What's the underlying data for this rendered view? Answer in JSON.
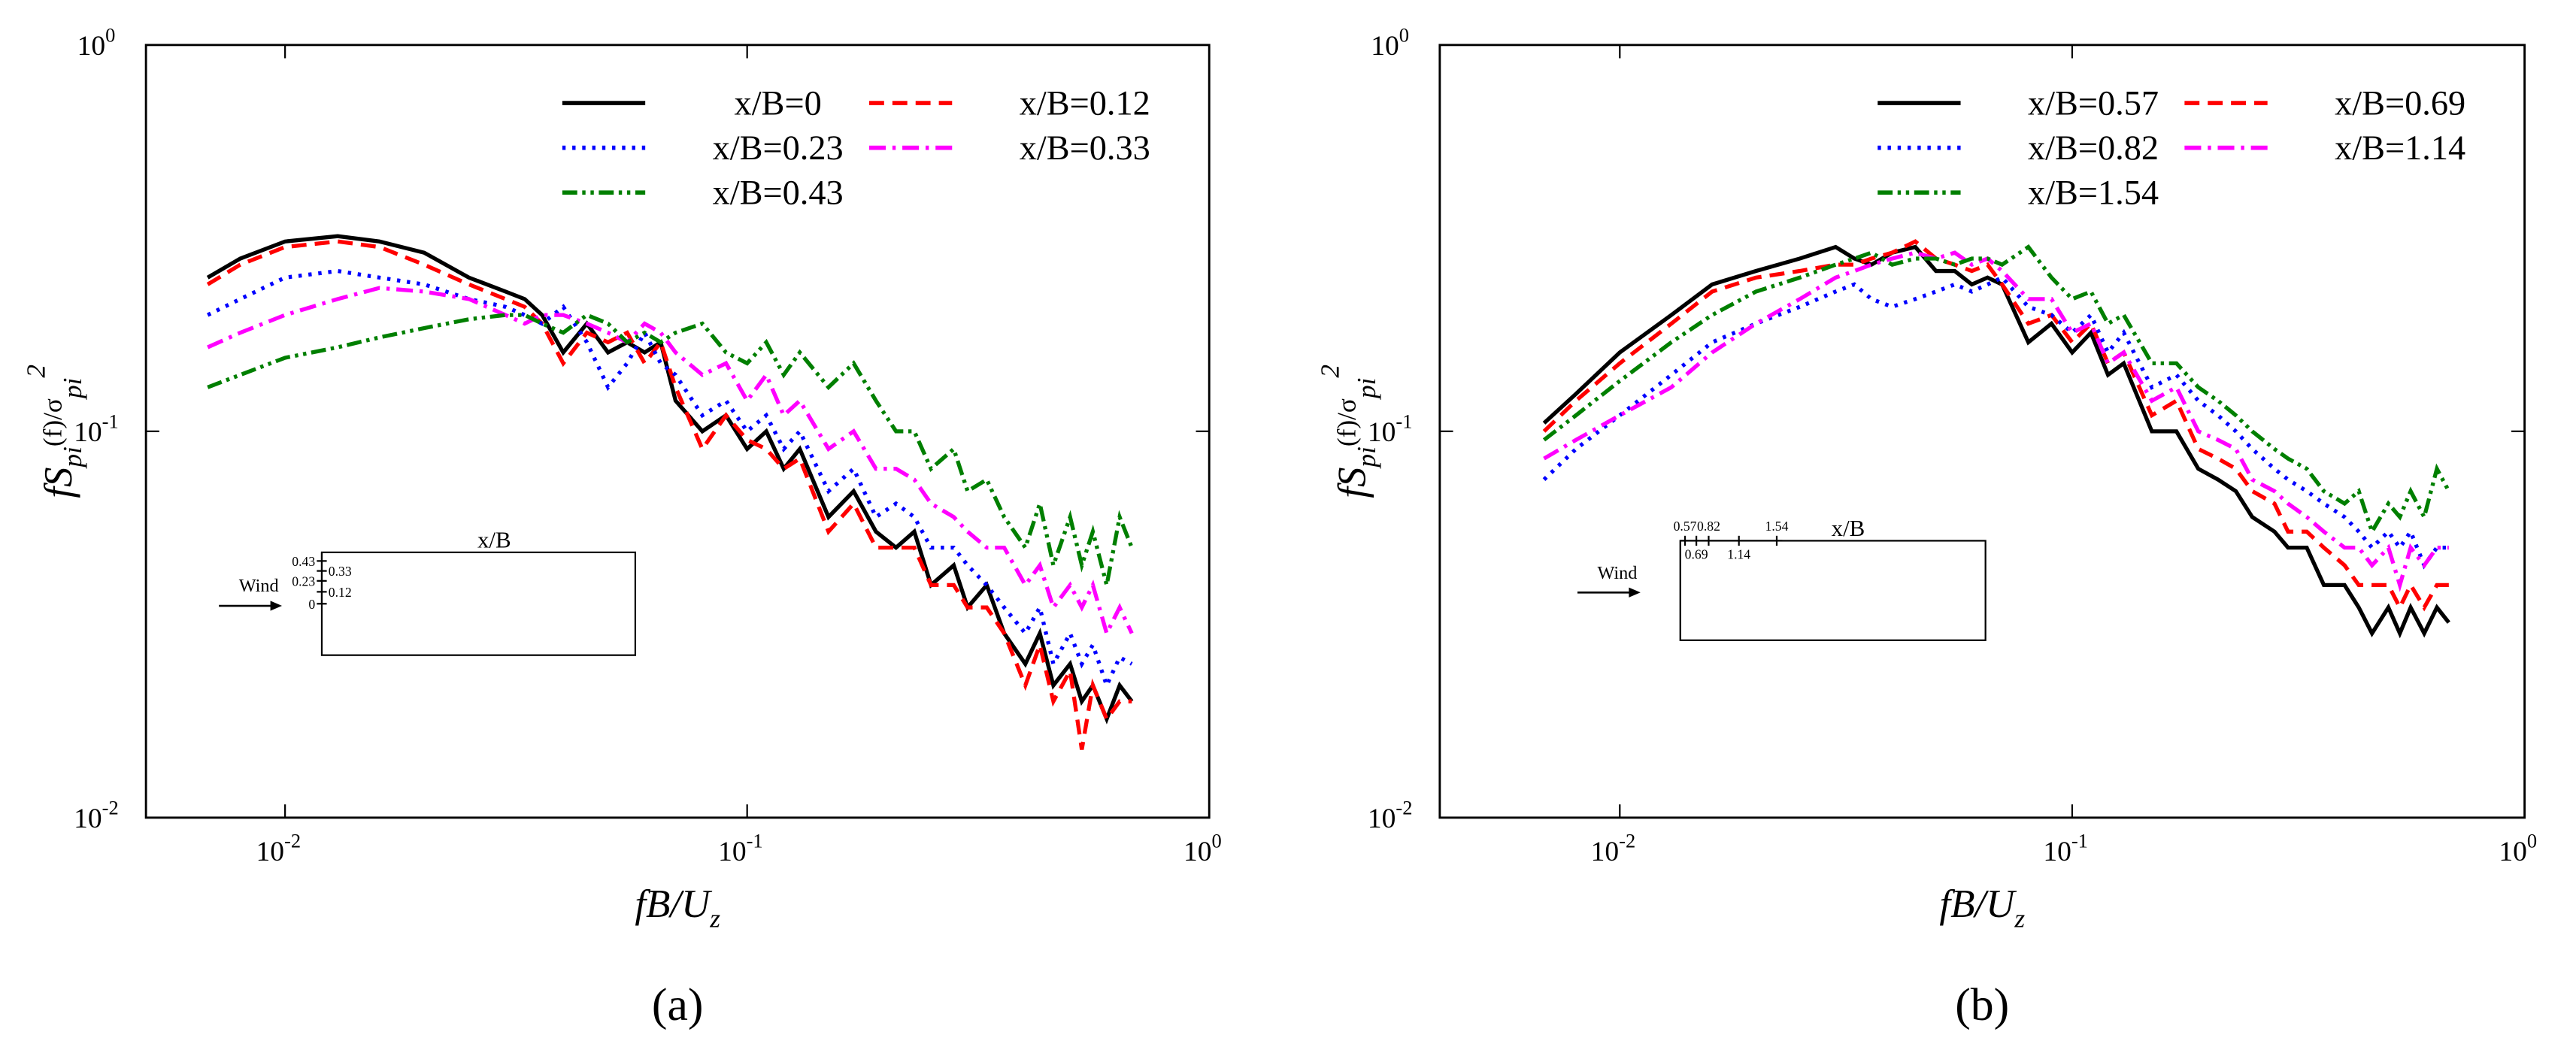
{
  "chart_data": [
    {
      "type": "line",
      "panel": "(a)",
      "xscale": "log",
      "yscale": "log",
      "xlabel": [
        "fB/U",
        "z"
      ],
      "ylabel": [
        "fS",
        "pi",
        "(f)/σ",
        "pi",
        "2"
      ],
      "xlim": [
        0.005,
        1
      ],
      "ylim": [
        0.01,
        1
      ],
      "xticks": [
        {
          "value": 0.01,
          "label": "10",
          "exponent": "-2"
        },
        {
          "value": 0.1,
          "label": "10",
          "exponent": "-1"
        },
        {
          "value": 1,
          "label": "10",
          "exponent": "0"
        }
      ],
      "yticks": [
        {
          "value": 0.01,
          "label": "10",
          "exponent": "-2"
        },
        {
          "value": 0.1,
          "label": "10",
          "exponent": "-1"
        },
        {
          "value": 1,
          "label": "10",
          "exponent": "0"
        }
      ],
      "legend": "upper right",
      "x": [
        0.0068,
        0.008,
        0.01,
        0.013,
        0.016,
        0.02,
        0.025,
        0.03,
        0.033,
        0.036,
        0.04,
        0.045,
        0.05,
        0.055,
        0.06,
        0.065,
        0.07,
        0.08,
        0.09,
        0.1,
        0.11,
        0.12,
        0.13,
        0.15,
        0.17,
        0.19,
        0.21,
        0.23,
        0.25,
        0.28,
        0.3,
        0.33,
        0.36,
        0.4,
        0.43,
        0.46,
        0.5,
        0.53,
        0.56,
        0.6,
        0.64,
        0.68
      ],
      "series": [
        {
          "name": "x/B=0",
          "color": "#000000",
          "style": "solid",
          "values": [
            0.25,
            0.28,
            0.31,
            0.32,
            0.31,
            0.29,
            0.25,
            0.23,
            0.22,
            0.2,
            0.16,
            0.19,
            0.16,
            0.17,
            0.16,
            0.17,
            0.12,
            0.1,
            0.11,
            0.09,
            0.1,
            0.08,
            0.09,
            0.06,
            0.07,
            0.055,
            0.05,
            0.055,
            0.04,
            0.045,
            0.035,
            0.04,
            0.03,
            0.025,
            0.03,
            0.022,
            0.025,
            0.02,
            0.022,
            0.018,
            0.022,
            0.02
          ]
        },
        {
          "name": "x/B=0.12",
          "color": "#ff0000",
          "style": "dashed",
          "values": [
            0.24,
            0.27,
            0.3,
            0.31,
            0.3,
            0.27,
            0.24,
            0.22,
            0.21,
            0.19,
            0.15,
            0.18,
            0.17,
            0.18,
            0.15,
            0.17,
            0.13,
            0.09,
            0.11,
            0.095,
            0.09,
            0.08,
            0.085,
            0.055,
            0.065,
            0.05,
            0.05,
            0.05,
            0.04,
            0.04,
            0.035,
            0.035,
            0.03,
            0.022,
            0.028,
            0.02,
            0.024,
            0.015,
            0.022,
            0.018,
            0.02,
            0.02
          ]
        },
        {
          "name": "x/B=0.23",
          "color": "#0000ff",
          "style": "dotted",
          "values": [
            0.2,
            0.22,
            0.25,
            0.26,
            0.25,
            0.24,
            0.22,
            0.21,
            0.2,
            0.19,
            0.21,
            0.17,
            0.13,
            0.15,
            0.18,
            0.15,
            0.14,
            0.11,
            0.12,
            0.1,
            0.11,
            0.09,
            0.1,
            0.07,
            0.08,
            0.06,
            0.065,
            0.06,
            0.05,
            0.05,
            0.045,
            0.04,
            0.035,
            0.03,
            0.035,
            0.025,
            0.03,
            0.025,
            0.028,
            0.022,
            0.026,
            0.025
          ]
        },
        {
          "name": "x/B=0.33",
          "color": "#ff00ff",
          "style": "dashdot",
          "values": [
            0.165,
            0.18,
            0.2,
            0.22,
            0.235,
            0.23,
            0.22,
            0.2,
            0.19,
            0.2,
            0.2,
            0.19,
            0.18,
            0.17,
            0.19,
            0.18,
            0.16,
            0.14,
            0.15,
            0.12,
            0.14,
            0.11,
            0.12,
            0.09,
            0.1,
            0.08,
            0.08,
            0.075,
            0.065,
            0.06,
            0.055,
            0.05,
            0.05,
            0.04,
            0.045,
            0.035,
            0.04,
            0.035,
            0.04,
            0.03,
            0.035,
            0.03
          ]
        },
        {
          "name": "x/B=0.43",
          "color": "#007f00",
          "style": "dashdotdot",
          "values": [
            0.13,
            0.14,
            0.155,
            0.165,
            0.175,
            0.185,
            0.195,
            0.2,
            0.2,
            0.19,
            0.18,
            0.2,
            0.19,
            0.17,
            0.18,
            0.17,
            0.18,
            0.19,
            0.16,
            0.15,
            0.17,
            0.14,
            0.16,
            0.13,
            0.15,
            0.12,
            0.1,
            0.1,
            0.08,
            0.09,
            0.07,
            0.075,
            0.06,
            0.05,
            0.065,
            0.045,
            0.06,
            0.045,
            0.055,
            0.04,
            0.06,
            0.05
          ]
        }
      ],
      "inset": {
        "label": "x/B",
        "wind": "Wind",
        "orientation": "vertical",
        "ticks": [
          0.43,
          0.33,
          0.23,
          0.12,
          0
        ]
      }
    },
    {
      "type": "line",
      "panel": "(b)",
      "xscale": "log",
      "yscale": "log",
      "xlabel": [
        "fB/U",
        "z"
      ],
      "ylabel": [
        "fS",
        "pi",
        "(f)/σ",
        "pi",
        "2"
      ],
      "xlim": [
        0.004,
        1
      ],
      "ylim": [
        0.01,
        1
      ],
      "xticks": [
        {
          "value": 0.01,
          "label": "10",
          "exponent": "-2"
        },
        {
          "value": 0.1,
          "label": "10",
          "exponent": "-1"
        },
        {
          "value": 1,
          "label": "10",
          "exponent": "0"
        }
      ],
      "yticks": [
        {
          "value": 0.01,
          "label": "10",
          "exponent": "-2"
        },
        {
          "value": 0.1,
          "label": "10",
          "exponent": "-1"
        },
        {
          "value": 1,
          "label": "10",
          "exponent": "0"
        }
      ],
      "legend": "upper right",
      "x": [
        0.0068,
        0.008,
        0.01,
        0.013,
        0.016,
        0.02,
        0.025,
        0.03,
        0.033,
        0.036,
        0.04,
        0.045,
        0.05,
        0.055,
        0.06,
        0.065,
        0.07,
        0.08,
        0.09,
        0.1,
        0.11,
        0.12,
        0.13,
        0.15,
        0.17,
        0.19,
        0.21,
        0.23,
        0.25,
        0.28,
        0.3,
        0.33,
        0.36,
        0.4,
        0.43,
        0.46,
        0.5,
        0.53,
        0.56,
        0.6,
        0.64,
        0.68
      ],
      "series": [
        {
          "name": "x/B=0.57",
          "color": "#000000",
          "style": "solid",
          "values": [
            0.105,
            0.125,
            0.16,
            0.2,
            0.24,
            0.26,
            0.28,
            0.3,
            0.28,
            0.27,
            0.29,
            0.3,
            0.26,
            0.26,
            0.24,
            0.25,
            0.24,
            0.17,
            0.19,
            0.16,
            0.18,
            0.14,
            0.15,
            0.1,
            0.1,
            0.08,
            0.075,
            0.07,
            0.06,
            0.055,
            0.05,
            0.05,
            0.04,
            0.04,
            0.035,
            0.03,
            0.035,
            0.03,
            0.035,
            0.03,
            0.035,
            0.032
          ]
        },
        {
          "name": "x/B=0.69",
          "color": "#ff0000",
          "style": "dashed",
          "values": [
            0.1,
            0.12,
            0.15,
            0.19,
            0.23,
            0.25,
            0.26,
            0.27,
            0.27,
            0.28,
            0.29,
            0.31,
            0.28,
            0.27,
            0.26,
            0.27,
            0.24,
            0.19,
            0.2,
            0.17,
            0.19,
            0.15,
            0.16,
            0.11,
            0.12,
            0.09,
            0.085,
            0.08,
            0.07,
            0.065,
            0.055,
            0.055,
            0.05,
            0.045,
            0.04,
            0.04,
            0.04,
            0.035,
            0.04,
            0.035,
            0.04,
            0.04
          ]
        },
        {
          "name": "x/B=0.82",
          "color": "#0000ff",
          "style": "dotted",
          "values": [
            0.075,
            0.09,
            0.11,
            0.14,
            0.17,
            0.19,
            0.21,
            0.23,
            0.24,
            0.22,
            0.21,
            0.22,
            0.23,
            0.24,
            0.23,
            0.24,
            0.25,
            0.21,
            0.2,
            0.18,
            0.2,
            0.16,
            0.18,
            0.13,
            0.14,
            0.12,
            0.11,
            0.1,
            0.09,
            0.08,
            0.075,
            0.07,
            0.065,
            0.06,
            0.055,
            0.05,
            0.055,
            0.05,
            0.055,
            0.045,
            0.05,
            0.05
          ]
        },
        {
          "name": "x/B=1.14",
          "color": "#ff00ff",
          "style": "dashdot",
          "values": [
            0.085,
            0.095,
            0.11,
            0.13,
            0.16,
            0.19,
            0.22,
            0.25,
            0.26,
            0.27,
            0.28,
            0.29,
            0.28,
            0.29,
            0.27,
            0.28,
            0.26,
            0.22,
            0.22,
            0.18,
            0.19,
            0.15,
            0.16,
            0.12,
            0.13,
            0.1,
            0.095,
            0.09,
            0.075,
            0.07,
            0.065,
            0.06,
            0.055,
            0.05,
            0.05,
            0.045,
            0.05,
            0.04,
            0.05,
            0.045,
            0.05,
            0.05
          ]
        },
        {
          "name": "x/B=1.54",
          "color": "#007f00",
          "style": "dashdotdot",
          "values": [
            0.095,
            0.11,
            0.135,
            0.17,
            0.2,
            0.23,
            0.25,
            0.27,
            0.28,
            0.29,
            0.27,
            0.28,
            0.28,
            0.27,
            0.28,
            0.28,
            0.27,
            0.3,
            0.25,
            0.22,
            0.23,
            0.19,
            0.2,
            0.15,
            0.15,
            0.13,
            0.12,
            0.11,
            0.1,
            0.09,
            0.085,
            0.08,
            0.07,
            0.065,
            0.07,
            0.055,
            0.065,
            0.06,
            0.07,
            0.06,
            0.08,
            0.07
          ]
        }
      ],
      "inset": {
        "label": "x/B",
        "wind": "Wind",
        "orientation": "horizontal",
        "ticks": [
          0.57,
          0.69,
          0.82,
          1.14,
          1.54
        ]
      }
    }
  ]
}
